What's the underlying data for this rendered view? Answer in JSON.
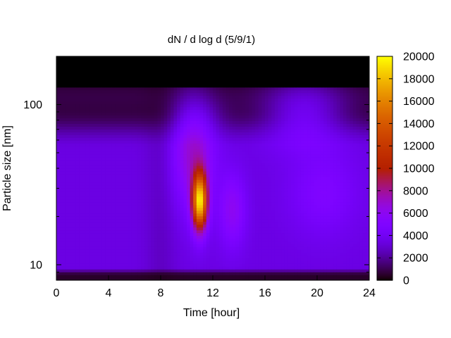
{
  "chart_data": {
    "type": "heatmap",
    "title": "dN / d log d (5/9/1)",
    "xlabel": "Time [hour]",
    "ylabel": "Particle size [nm]",
    "xlim": [
      0,
      24
    ],
    "x_ticks": [
      "0",
      "4",
      "8",
      "12",
      "16",
      "20",
      "24"
    ],
    "y_scale": "log",
    "ylim": [
      8,
      200
    ],
    "y_ticks": [
      "10",
      "100"
    ],
    "colorbar": {
      "range": [
        0,
        20000
      ],
      "ticks": [
        "0",
        "2000",
        "4000",
        "6000",
        "8000",
        "10000",
        "12000",
        "14000",
        "16000",
        "18000",
        "20000"
      ],
      "palette": "gnuplot (black-purple-red-orange-yellow)"
    },
    "grid": false,
    "features": {
      "background_level": 3500,
      "upper_size_black_region_nm": [
        130,
        200
      ],
      "peak": {
        "time_hour": 11,
        "size_nm": 25,
        "value": 18500
      },
      "secondary_enhancement": {
        "time_hour": 13.5,
        "size_nm": 22,
        "value": 6000
      }
    }
  }
}
